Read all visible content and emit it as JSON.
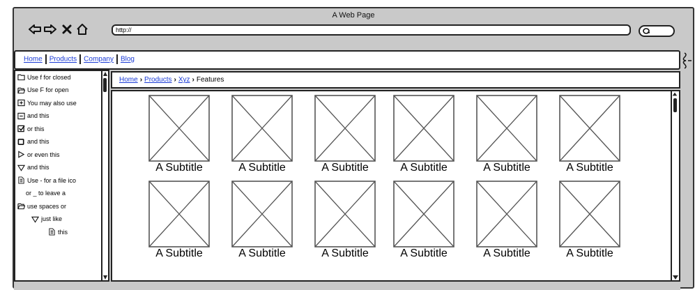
{
  "window": {
    "title": "A Web Page",
    "url": "http://"
  },
  "search": {
    "icon": "search-q"
  },
  "nav": {
    "links": [
      "Home",
      "Products",
      "Company",
      "Blog"
    ]
  },
  "breadcrumb": {
    "links": [
      "Home",
      "Products",
      "Xyz"
    ],
    "current": "Features"
  },
  "tree": {
    "items": [
      {
        "icon": "folder-closed-icon",
        "label": "Use f for closed"
      },
      {
        "icon": "folder-open-icon",
        "label": "Use F for open"
      },
      {
        "icon": "plus-box-icon",
        "label": "You may also use"
      },
      {
        "icon": "minus-box-icon",
        "label": "and this"
      },
      {
        "icon": "checkbox-checked-icon",
        "label": "or this"
      },
      {
        "icon": "checkbox-empty-icon",
        "label": "and this"
      },
      {
        "icon": "triangle-right-icon",
        "label": "or even this"
      },
      {
        "icon": "triangle-down-icon",
        "label": "and this"
      },
      {
        "icon": "file-icon",
        "label": "Use - for a file ico"
      },
      {
        "icon": "",
        "label": "or _ to leave a"
      },
      {
        "icon": "folder-open-icon",
        "label": "use spaces or"
      },
      {
        "icon": "triangle-down-icon",
        "label": "just like"
      },
      {
        "icon": "file-icon",
        "label": "this"
      }
    ]
  },
  "cards": [
    {
      "subtitle": "A Subtitle"
    },
    {
      "subtitle": "A Subtitle"
    },
    {
      "subtitle": "A Subtitle"
    },
    {
      "subtitle": "A Subtitle"
    },
    {
      "subtitle": "A Subtitle"
    },
    {
      "subtitle": "A Subtitle"
    },
    {
      "subtitle": "A Subtitle"
    },
    {
      "subtitle": "A Subtitle"
    },
    {
      "subtitle": "A Subtitle"
    },
    {
      "subtitle": "A Subtitle"
    },
    {
      "subtitle": "A Subtitle"
    },
    {
      "subtitle": "A Subtitle"
    }
  ]
}
